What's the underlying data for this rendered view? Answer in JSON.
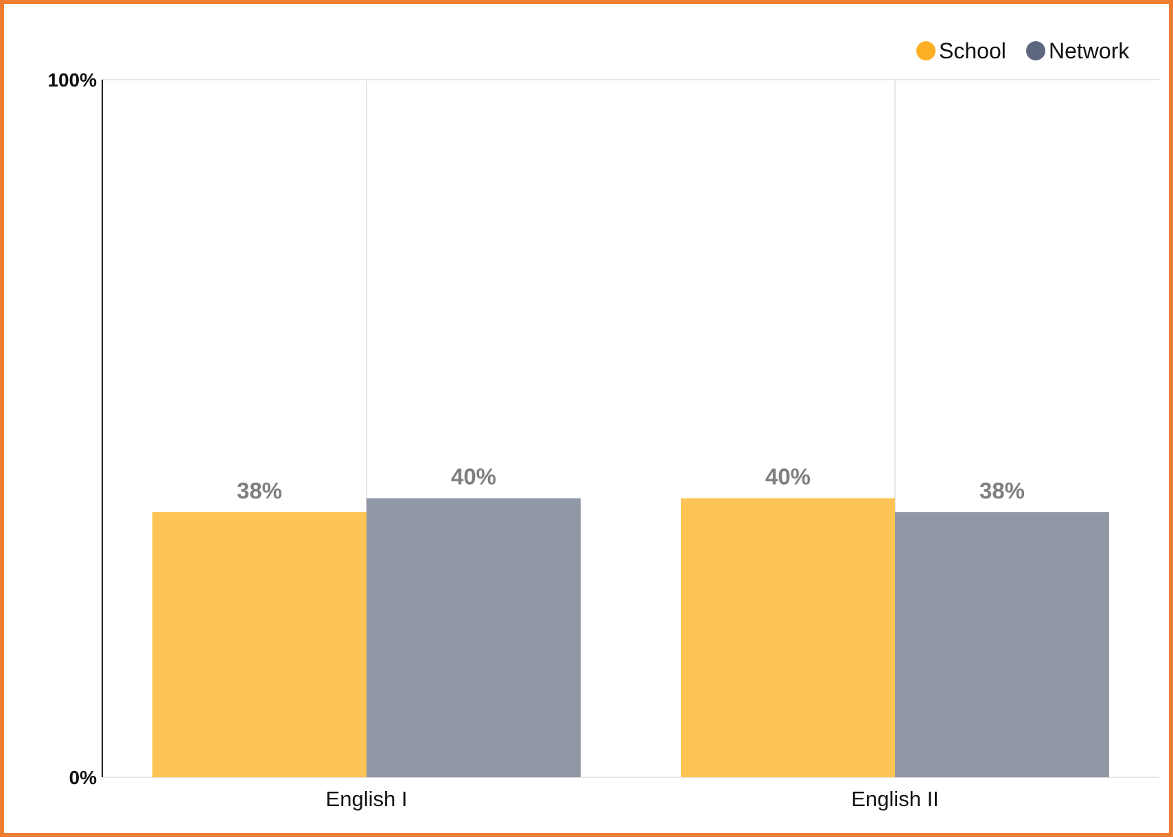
{
  "chart_data": {
    "type": "bar",
    "categories": [
      "English I",
      "English II"
    ],
    "series": [
      {
        "name": "School",
        "values": [
          38,
          40
        ],
        "color": "#FEC456",
        "legend_color": "#FDB023"
      },
      {
        "name": "Network",
        "values": [
          40,
          38
        ],
        "color": "#9097A5",
        "legend_color": "#5E6780"
      }
    ],
    "data_labels": [
      [
        "38%",
        "40%"
      ],
      [
        "40%",
        "38%"
      ]
    ],
    "yticks": [
      "0%",
      "100%"
    ],
    "ylim": [
      0,
      100
    ],
    "grid": "vertical",
    "legend_position": "top-right",
    "title": "",
    "xlabel": "",
    "ylabel": ""
  },
  "colors": {
    "frame_border": "#ED7D31",
    "data_label": "#7F7F7F",
    "gridline": "#E6E6E6",
    "axis": "#222222"
  }
}
